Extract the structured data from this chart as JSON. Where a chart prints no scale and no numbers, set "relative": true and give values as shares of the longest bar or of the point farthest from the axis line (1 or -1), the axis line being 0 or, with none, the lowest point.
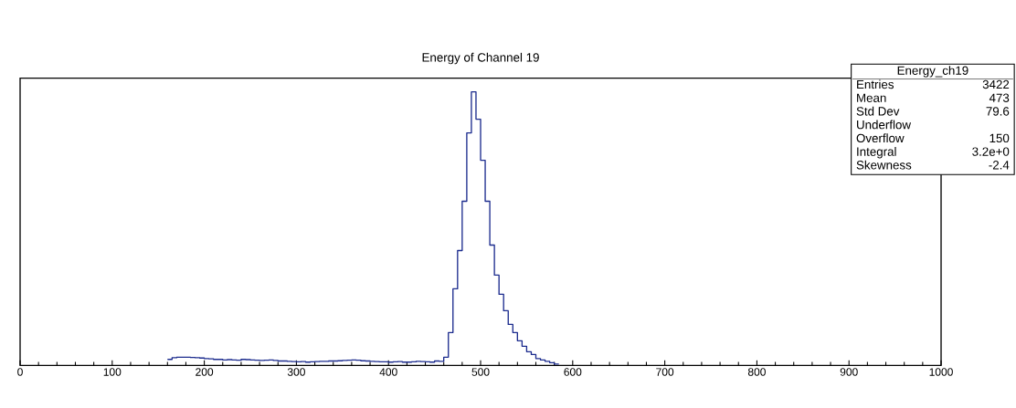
{
  "chart_data": {
    "type": "step",
    "title": "Energy of Channel 19",
    "relative": true,
    "color": "#1c2c8e",
    "x": [
      160,
      165,
      170,
      175,
      180,
      185,
      190,
      195,
      200,
      205,
      210,
      215,
      220,
      225,
      230,
      235,
      240,
      245,
      250,
      255,
      260,
      265,
      270,
      275,
      280,
      285,
      290,
      295,
      300,
      305,
      310,
      315,
      320,
      325,
      330,
      335,
      340,
      345,
      350,
      355,
      360,
      365,
      370,
      375,
      380,
      385,
      390,
      395,
      400,
      405,
      410,
      415,
      420,
      425,
      430,
      435,
      440,
      445,
      450,
      455,
      460,
      465,
      470,
      475,
      480,
      485,
      490,
      495,
      500,
      505,
      510,
      515,
      520,
      525,
      530,
      535,
      540,
      545,
      550,
      555,
      560,
      565,
      570,
      575,
      580,
      585
    ],
    "values": [
      0.022,
      0.028,
      0.03,
      0.03,
      0.03,
      0.029,
      0.028,
      0.027,
      0.025,
      0.024,
      0.022,
      0.022,
      0.02,
      0.021,
      0.02,
      0.019,
      0.022,
      0.021,
      0.02,
      0.019,
      0.018,
      0.019,
      0.02,
      0.018,
      0.016,
      0.016,
      0.015,
      0.014,
      0.013,
      0.014,
      0.012,
      0.013,
      0.014,
      0.015,
      0.015,
      0.016,
      0.016,
      0.017,
      0.018,
      0.019,
      0.02,
      0.019,
      0.017,
      0.016,
      0.015,
      0.014,
      0.013,
      0.013,
      0.012,
      0.013,
      0.014,
      0.012,
      0.012,
      0.013,
      0.015,
      0.014,
      0.013,
      0.012,
      0.016,
      0.015,
      0.03,
      0.12,
      0.28,
      0.42,
      0.6,
      0.85,
      1,
      0.9,
      0.75,
      0.6,
      0.44,
      0.33,
      0.26,
      0.2,
      0.15,
      0.12,
      0.09,
      0.07,
      0.05,
      0.04,
      0.025,
      0.02,
      0.015,
      0.01,
      0.005,
      0.005
    ],
    "xlim": [
      0,
      1000
    ],
    "xticks": [
      0,
      100,
      200,
      300,
      400,
      500,
      600,
      700,
      800,
      900,
      1000
    ],
    "tick_labels": "x",
    "grid": false,
    "annotations": [
      "Energy_ch19",
      "Entries",
      "3422",
      "Mean",
      "473",
      "Std Dev",
      "79.6",
      "Underflow",
      "Overflow",
      "150",
      "Integral",
      "3.2e+0",
      "Skewness",
      "-2.4"
    ]
  }
}
